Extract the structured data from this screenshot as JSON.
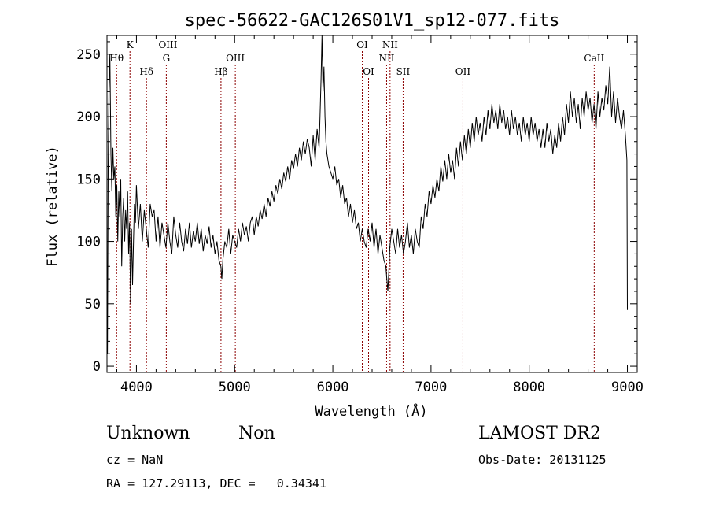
{
  "chart_data": {
    "type": "line",
    "title": "spec-56622-GAC126S01V1_sp12-077.fits",
    "xlabel": "Wavelength (Å)",
    "ylabel": "Flux (relative)",
    "xlim": [
      3700,
      9100
    ],
    "ylim": [
      -5,
      265
    ],
    "x_ticks": [
      4000,
      5000,
      6000,
      7000,
      8000,
      9000
    ],
    "y_ticks": [
      0,
      50,
      100,
      150,
      200,
      250
    ],
    "line_color": "#000000",
    "marker_color": "#8b0000",
    "spectrum_points": [
      [
        3700,
        55
      ],
      [
        3705,
        10
      ],
      [
        3712,
        160
      ],
      [
        3720,
        220
      ],
      [
        3730,
        250
      ],
      [
        3740,
        170
      ],
      [
        3750,
        140
      ],
      [
        3760,
        175
      ],
      [
        3770,
        150
      ],
      [
        3780,
        160
      ],
      [
        3790,
        120
      ],
      [
        3800,
        145
      ],
      [
        3810,
        100
      ],
      [
        3820,
        140
      ],
      [
        3830,
        120
      ],
      [
        3840,
        150
      ],
      [
        3850,
        80
      ],
      [
        3860,
        120
      ],
      [
        3870,
        135
      ],
      [
        3880,
        100
      ],
      [
        3890,
        125
      ],
      [
        3900,
        110
      ],
      [
        3910,
        140
      ],
      [
        3920,
        90
      ],
      [
        3930,
        115
      ],
      [
        3940,
        50
      ],
      [
        3950,
        110
      ],
      [
        3960,
        65
      ],
      [
        3970,
        100
      ],
      [
        3980,
        130
      ],
      [
        3990,
        115
      ],
      [
        4000,
        145
      ],
      [
        4020,
        110
      ],
      [
        4040,
        130
      ],
      [
        4060,
        100
      ],
      [
        4080,
        125
      ],
      [
        4100,
        110
      ],
      [
        4120,
        95
      ],
      [
        4140,
        130
      ],
      [
        4160,
        120
      ],
      [
        4180,
        125
      ],
      [
        4200,
        100
      ],
      [
        4220,
        120
      ],
      [
        4240,
        95
      ],
      [
        4260,
        115
      ],
      [
        4280,
        105
      ],
      [
        4300,
        95
      ],
      [
        4320,
        115
      ],
      [
        4340,
        100
      ],
      [
        4360,
        90
      ],
      [
        4380,
        120
      ],
      [
        4400,
        105
      ],
      [
        4420,
        95
      ],
      [
        4440,
        115
      ],
      [
        4460,
        100
      ],
      [
        4480,
        92
      ],
      [
        4500,
        110
      ],
      [
        4520,
        98
      ],
      [
        4540,
        115
      ],
      [
        4560,
        95
      ],
      [
        4580,
        108
      ],
      [
        4600,
        100
      ],
      [
        4620,
        115
      ],
      [
        4640,
        98
      ],
      [
        4660,
        110
      ],
      [
        4680,
        92
      ],
      [
        4700,
        105
      ],
      [
        4720,
        98
      ],
      [
        4740,
        112
      ],
      [
        4760,
        95
      ],
      [
        4780,
        105
      ],
      [
        4800,
        90
      ],
      [
        4820,
        100
      ],
      [
        4840,
        85
      ],
      [
        4860,
        80
      ],
      [
        4870,
        70
      ],
      [
        4880,
        85
      ],
      [
        4900,
        100
      ],
      [
        4920,
        95
      ],
      [
        4940,
        110
      ],
      [
        4960,
        90
      ],
      [
        4980,
        105
      ],
      [
        5000,
        100
      ],
      [
        5020,
        95
      ],
      [
        5040,
        110
      ],
      [
        5060,
        100
      ],
      [
        5080,
        115
      ],
      [
        5100,
        105
      ],
      [
        5120,
        112
      ],
      [
        5140,
        100
      ],
      [
        5160,
        115
      ],
      [
        5180,
        120
      ],
      [
        5200,
        105
      ],
      [
        5220,
        120
      ],
      [
        5240,
        112
      ],
      [
        5260,
        125
      ],
      [
        5280,
        118
      ],
      [
        5300,
        130
      ],
      [
        5320,
        120
      ],
      [
        5340,
        135
      ],
      [
        5360,
        128
      ],
      [
        5380,
        140
      ],
      [
        5400,
        132
      ],
      [
        5420,
        145
      ],
      [
        5440,
        138
      ],
      [
        5460,
        150
      ],
      [
        5480,
        142
      ],
      [
        5500,
        155
      ],
      [
        5520,
        148
      ],
      [
        5540,
        160
      ],
      [
        5560,
        150
      ],
      [
        5580,
        165
      ],
      [
        5600,
        158
      ],
      [
        5620,
        170
      ],
      [
        5640,
        160
      ],
      [
        5660,
        175
      ],
      [
        5680,
        165
      ],
      [
        5700,
        180
      ],
      [
        5720,
        170
      ],
      [
        5740,
        182
      ],
      [
        5760,
        175
      ],
      [
        5780,
        160
      ],
      [
        5800,
        185
      ],
      [
        5820,
        165
      ],
      [
        5840,
        190
      ],
      [
        5860,
        175
      ],
      [
        5870,
        200
      ],
      [
        5880,
        230
      ],
      [
        5890,
        265
      ],
      [
        5895,
        240
      ],
      [
        5900,
        220
      ],
      [
        5910,
        240
      ],
      [
        5920,
        200
      ],
      [
        5930,
        180
      ],
      [
        5940,
        170
      ],
      [
        5960,
        160
      ],
      [
        5980,
        155
      ],
      [
        6000,
        150
      ],
      [
        6020,
        160
      ],
      [
        6040,
        145
      ],
      [
        6060,
        150
      ],
      [
        6080,
        135
      ],
      [
        6100,
        145
      ],
      [
        6120,
        130
      ],
      [
        6140,
        135
      ],
      [
        6160,
        120
      ],
      [
        6180,
        130
      ],
      [
        6200,
        115
      ],
      [
        6220,
        125
      ],
      [
        6240,
        110
      ],
      [
        6260,
        115
      ],
      [
        6280,
        100
      ],
      [
        6300,
        110
      ],
      [
        6320,
        100
      ],
      [
        6340,
        95
      ],
      [
        6360,
        110
      ],
      [
        6380,
        100
      ],
      [
        6400,
        115
      ],
      [
        6420,
        95
      ],
      [
        6440,
        110
      ],
      [
        6460,
        90
      ],
      [
        6480,
        105
      ],
      [
        6500,
        95
      ],
      [
        6520,
        85
      ],
      [
        6540,
        80
      ],
      [
        6550,
        70
      ],
      [
        6560,
        60
      ],
      [
        6570,
        75
      ],
      [
        6580,
        95
      ],
      [
        6600,
        110
      ],
      [
        6620,
        100
      ],
      [
        6640,
        90
      ],
      [
        6660,
        110
      ],
      [
        6680,
        95
      ],
      [
        6700,
        105
      ],
      [
        6720,
        90
      ],
      [
        6740,
        100
      ],
      [
        6760,
        115
      ],
      [
        6780,
        95
      ],
      [
        6800,
        105
      ],
      [
        6820,
        90
      ],
      [
        6840,
        110
      ],
      [
        6860,
        100
      ],
      [
        6880,
        95
      ],
      [
        6900,
        120
      ],
      [
        6920,
        110
      ],
      [
        6940,
        130
      ],
      [
        6960,
        120
      ],
      [
        6980,
        140
      ],
      [
        7000,
        130
      ],
      [
        7020,
        145
      ],
      [
        7040,
        135
      ],
      [
        7060,
        150
      ],
      [
        7080,
        140
      ],
      [
        7100,
        160
      ],
      [
        7120,
        148
      ],
      [
        7140,
        165
      ],
      [
        7160,
        150
      ],
      [
        7180,
        170
      ],
      [
        7200,
        155
      ],
      [
        7220,
        165
      ],
      [
        7240,
        150
      ],
      [
        7260,
        175
      ],
      [
        7280,
        160
      ],
      [
        7300,
        180
      ],
      [
        7320,
        165
      ],
      [
        7340,
        185
      ],
      [
        7360,
        170
      ],
      [
        7380,
        190
      ],
      [
        7400,
        175
      ],
      [
        7420,
        195
      ],
      [
        7440,
        180
      ],
      [
        7460,
        200
      ],
      [
        7480,
        185
      ],
      [
        7500,
        195
      ],
      [
        7520,
        180
      ],
      [
        7540,
        200
      ],
      [
        7560,
        185
      ],
      [
        7580,
        205
      ],
      [
        7600,
        190
      ],
      [
        7620,
        210
      ],
      [
        7640,
        195
      ],
      [
        7660,
        205
      ],
      [
        7680,
        190
      ],
      [
        7700,
        210
      ],
      [
        7720,
        195
      ],
      [
        7740,
        205
      ],
      [
        7760,
        190
      ],
      [
        7780,
        200
      ],
      [
        7800,
        185
      ],
      [
        7820,
        205
      ],
      [
        7840,
        190
      ],
      [
        7860,
        200
      ],
      [
        7880,
        185
      ],
      [
        7900,
        195
      ],
      [
        7920,
        180
      ],
      [
        7940,
        200
      ],
      [
        7960,
        185
      ],
      [
        7980,
        195
      ],
      [
        8000,
        180
      ],
      [
        8020,
        200
      ],
      [
        8040,
        185
      ],
      [
        8060,
        195
      ],
      [
        8080,
        180
      ],
      [
        8100,
        190
      ],
      [
        8120,
        175
      ],
      [
        8140,
        190
      ],
      [
        8160,
        175
      ],
      [
        8180,
        195
      ],
      [
        8200,
        180
      ],
      [
        8220,
        190
      ],
      [
        8240,
        170
      ],
      [
        8260,
        185
      ],
      [
        8280,
        175
      ],
      [
        8300,
        195
      ],
      [
        8320,
        180
      ],
      [
        8340,
        200
      ],
      [
        8360,
        185
      ],
      [
        8380,
        210
      ],
      [
        8400,
        195
      ],
      [
        8420,
        220
      ],
      [
        8440,
        200
      ],
      [
        8460,
        215
      ],
      [
        8480,
        195
      ],
      [
        8500,
        210
      ],
      [
        8520,
        190
      ],
      [
        8540,
        215
      ],
      [
        8560,
        200
      ],
      [
        8580,
        220
      ],
      [
        8600,
        205
      ],
      [
        8620,
        215
      ],
      [
        8640,
        195
      ],
      [
        8660,
        210
      ],
      [
        8680,
        190
      ],
      [
        8700,
        220
      ],
      [
        8720,
        200
      ],
      [
        8740,
        215
      ],
      [
        8760,
        205
      ],
      [
        8780,
        225
      ],
      [
        8800,
        210
      ],
      [
        8820,
        240
      ],
      [
        8840,
        200
      ],
      [
        8860,
        220
      ],
      [
        8880,
        195
      ],
      [
        8900,
        215
      ],
      [
        8920,
        200
      ],
      [
        8940,
        190
      ],
      [
        8960,
        205
      ],
      [
        8980,
        185
      ],
      [
        8995,
        165
      ],
      [
        9000,
        45
      ]
    ],
    "line_markers": [
      {
        "label": "Hθ",
        "wavelength": 3798,
        "row": 2
      },
      {
        "label": "K",
        "wavelength": 3934,
        "row": 1
      },
      {
        "label": "Hδ",
        "wavelength": 4102,
        "row": 3
      },
      {
        "label": "OIII",
        "wavelength": 4321,
        "row": 1
      },
      {
        "label": "G",
        "wavelength": 4304,
        "row": 2
      },
      {
        "label": "Hβ",
        "wavelength": 4861,
        "row": 3
      },
      {
        "label": "OIII",
        "wavelength": 5007,
        "row": 2
      },
      {
        "label": "OI",
        "wavelength": 6300,
        "row": 1
      },
      {
        "label": "OI",
        "wavelength": 6364,
        "row": 3
      },
      {
        "label": "NII",
        "wavelength": 6583,
        "row": 1
      },
      {
        "label": "NII",
        "wavelength": 6548,
        "row": 2
      },
      {
        "label": "SII",
        "wavelength": 6716,
        "row": 3
      },
      {
        "label": "OII",
        "wavelength": 7325,
        "row": 3
      },
      {
        "label": "CaII",
        "wavelength": 8662,
        "row": 2
      }
    ]
  },
  "info": {
    "object_class": "Unknown",
    "subclass": "Non",
    "survey": "LAMOST DR2",
    "cz": "cz = NaN",
    "obs_date": "Obs-Date: 20131125",
    "coords": "RA = 127.29113, DEC =   0.34341"
  }
}
